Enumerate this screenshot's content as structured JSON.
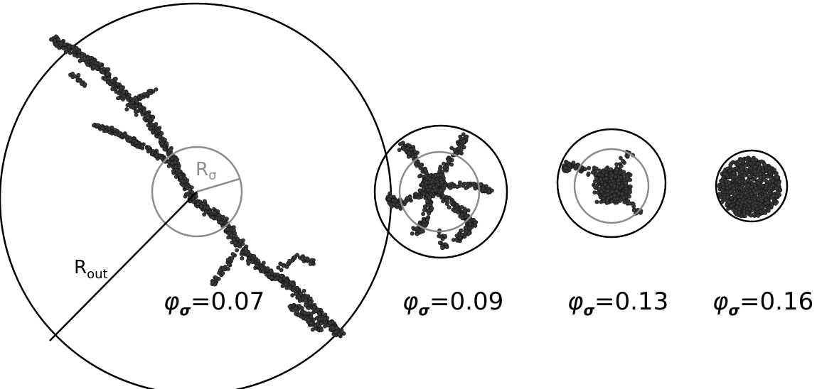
{
  "panels": [
    {
      "phi_symbol": "φ",
      "phi_sub": "σ",
      "equals": "=",
      "value": "0.07"
    },
    {
      "phi_symbol": "φ",
      "phi_sub": "σ",
      "equals": "=",
      "value": "0.09"
    },
    {
      "phi_symbol": "φ",
      "phi_sub": "σ",
      "equals": "=",
      "value": "0.13"
    },
    {
      "phi_symbol": "φ",
      "phi_sub": "σ",
      "equals": "=",
      "value": "0.16"
    }
  ],
  "labels": {
    "r_sigma_main": "R",
    "r_sigma_sub": "σ",
    "r_out_main": "R",
    "r_out_sub": "out"
  },
  "colors": {
    "outer_circle": "#000000",
    "gyration_circle": "#8c8c8c",
    "particle_fill": "#3a3a3a",
    "particle_stroke": "#111111"
  }
}
